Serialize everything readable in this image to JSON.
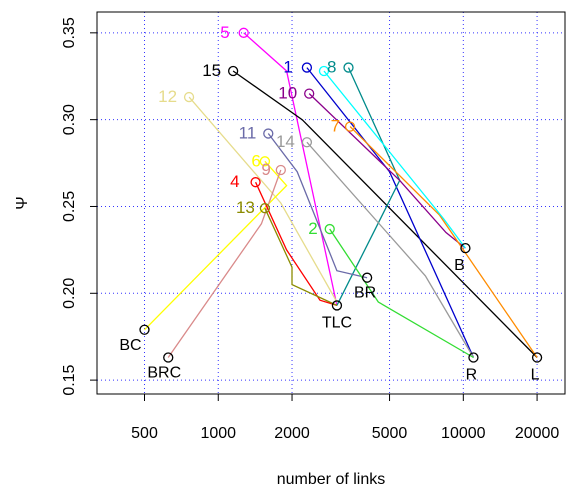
{
  "chart_data": {
    "type": "line",
    "title": "",
    "xlabel": "number of links",
    "ylabel": "Ψ",
    "x_scale": "log",
    "xlim": [
      320,
      26000
    ],
    "ylim": [
      0.142,
      0.362
    ],
    "grid": true,
    "x_ticks": [
      {
        "value": 500,
        "label": "500"
      },
      {
        "value": 1000,
        "label": "1000"
      },
      {
        "value": 2000,
        "label": "2000"
      },
      {
        "value": 5000,
        "label": "5000"
      },
      {
        "value": 10000,
        "label": "10000"
      },
      {
        "value": 20000,
        "label": "20000"
      }
    ],
    "y_ticks": [
      {
        "value": 0.15,
        "label": "0.15"
      },
      {
        "value": 0.2,
        "label": "0.20"
      },
      {
        "value": 0.25,
        "label": "0.25"
      },
      {
        "value": 0.3,
        "label": "0.30"
      },
      {
        "value": 0.35,
        "label": "0.35"
      }
    ],
    "x_grid": [
      500,
      1000,
      2000,
      5000,
      10000,
      20000
    ],
    "y_grid": [
      0.15,
      0.2,
      0.25,
      0.3,
      0.35
    ],
    "anchors": [
      {
        "label": "BC",
        "x": 500,
        "y": 0.179
      },
      {
        "label": "BRC",
        "x": 625,
        "y": 0.163
      },
      {
        "label": "TLC",
        "x": 3050,
        "y": 0.193
      },
      {
        "label": "BR",
        "x": 4050,
        "y": 0.209
      },
      {
        "label": "B",
        "x": 10200,
        "y": 0.226
      },
      {
        "label": "R",
        "x": 11000,
        "y": 0.163
      },
      {
        "label": "L",
        "x": 20000,
        "y": 0.163
      }
    ],
    "series": [
      {
        "name": "5",
        "color": "#ff00ff",
        "start": [
          1270,
          0.35
        ],
        "points": [
          [
            1270,
            0.35
          ],
          [
            1900,
            0.328
          ],
          [
            3050,
            0.193
          ]
        ]
      },
      {
        "name": "15",
        "color": "#000000",
        "start": [
          1150,
          0.328
        ],
        "points": [
          [
            1150,
            0.328
          ],
          [
            2200,
            0.3
          ],
          [
            20000,
            0.163
          ]
        ]
      },
      {
        "name": "1",
        "color": "#0000cd",
        "start": [
          2300,
          0.33
        ],
        "points": [
          [
            2300,
            0.33
          ],
          [
            5000,
            0.27
          ],
          [
            11000,
            0.163
          ]
        ]
      },
      {
        "name": "8",
        "color": "#008b8b",
        "start": [
          3400,
          0.33
        ],
        "points": [
          [
            3400,
            0.33
          ],
          [
            5500,
            0.265
          ],
          [
            3050,
            0.193
          ]
        ]
      },
      {
        "name": "12",
        "color": "#e6dc8c",
        "start": [
          760,
          0.313
        ],
        "points": [
          [
            760,
            0.313
          ],
          [
            1800,
            0.252
          ],
          [
            3050,
            0.195
          ]
        ]
      },
      {
        "name": "10",
        "color": "#8b008b",
        "start": [
          2350,
          0.315
        ],
        "points": [
          [
            2350,
            0.315
          ],
          [
            5500,
            0.265
          ],
          [
            8500,
            0.235
          ],
          [
            10200,
            0.226
          ]
        ]
      },
      {
        "name": "7",
        "color": "#ff8c00",
        "start": [
          3450,
          0.296
        ],
        "points": [
          [
            3450,
            0.296
          ],
          [
            8000,
            0.245
          ],
          [
            20000,
            0.163
          ]
        ]
      },
      {
        "name": "11",
        "color": "#6a6aa8",
        "start": [
          1600,
          0.292
        ],
        "points": [
          [
            1600,
            0.292
          ],
          [
            2100,
            0.27
          ],
          [
            3050,
            0.213
          ],
          [
            4050,
            0.209
          ]
        ]
      },
      {
        "name": "14",
        "color": "#9a9a9a",
        "start": [
          2300,
          0.287
        ],
        "points": [
          [
            2300,
            0.287
          ],
          [
            7000,
            0.21
          ],
          [
            11000,
            0.163
          ]
        ]
      },
      {
        "name": "6",
        "color": "#ffff00",
        "start": [
          1550,
          0.276
        ],
        "points": [
          [
            1550,
            0.276
          ],
          [
            1900,
            0.262
          ],
          [
            500,
            0.179
          ]
        ]
      },
      {
        "name": "9",
        "color": "#d98a8a",
        "start": [
          1800,
          0.271
        ],
        "points": [
          [
            1800,
            0.271
          ],
          [
            1500,
            0.24
          ],
          [
            625,
            0.163
          ]
        ]
      },
      {
        "name": "4",
        "color": "#ff0000",
        "start": [
          1420,
          0.264
        ],
        "points": [
          [
            1420,
            0.264
          ],
          [
            1900,
            0.225
          ],
          [
            2600,
            0.196
          ],
          [
            3050,
            0.193
          ]
        ]
      },
      {
        "name": "13",
        "color": "#8b8b00",
        "start": [
          1550,
          0.249
        ],
        "points": [
          [
            1550,
            0.249
          ],
          [
            2000,
            0.215
          ],
          [
            2000,
            0.205
          ],
          [
            3050,
            0.193
          ]
        ]
      },
      {
        "name": "2",
        "color": "#33dd33",
        "start": [
          2850,
          0.237
        ],
        "points": [
          [
            2850,
            0.237
          ],
          [
            4500,
            0.195
          ],
          [
            11000,
            0.163
          ]
        ]
      },
      {
        "name": "3",
        "color": "#00ffff",
        "start": [
          2700,
          0.328
        ],
        "points": [
          [
            2700,
            0.328
          ],
          [
            8300,
            0.243
          ],
          [
            10200,
            0.226
          ]
        ]
      }
    ]
  }
}
